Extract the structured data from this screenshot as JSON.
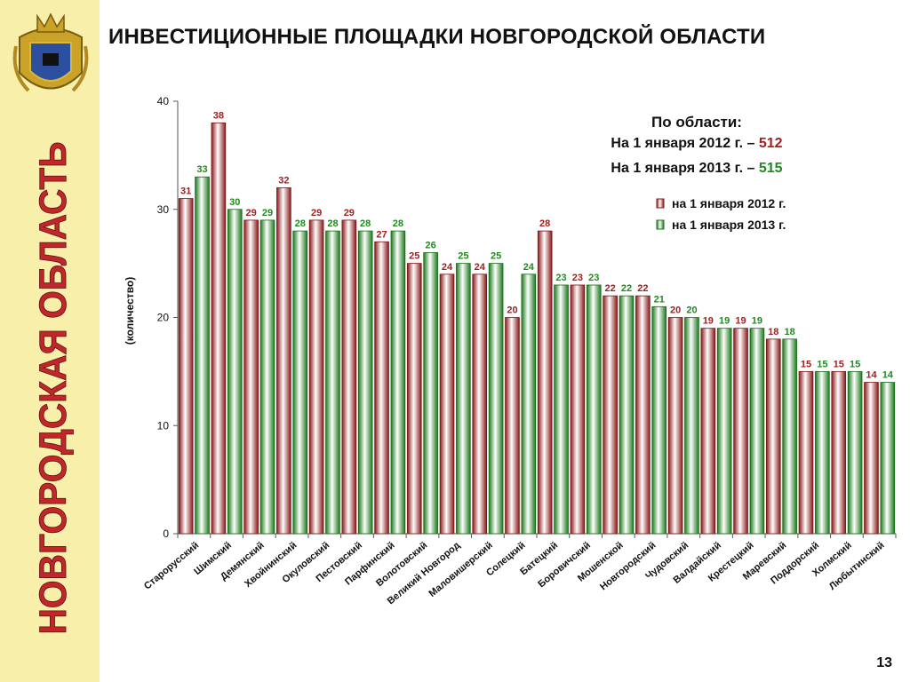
{
  "slide": {
    "title": "ИНВЕСТИЦИОННЫЕ ПЛОЩАДКИ НОВГОРОДСКОЙ ОБЛАСТИ",
    "side_title": "НОВГОРОДСКАЯ ОБЛАСТЬ",
    "page_number": "13"
  },
  "summary": {
    "heading": "По области:",
    "line1_text": "На 1 января 2012 г. –",
    "line1_value": "512",
    "line2_text": "На 1 января 2013 г. –",
    "line2_value": "515"
  },
  "colors": {
    "series_2012": "#a02020",
    "series_2013": "#1e8a1e",
    "sidebar_bg": "#f7efaa",
    "side_title": "#c0262a"
  },
  "chart_data": {
    "type": "bar",
    "ylabel": "(количество)",
    "ylim": [
      0,
      40
    ],
    "yticks": [
      0,
      10,
      20,
      30,
      40
    ],
    "legend_position": "top-right",
    "categories": [
      "Старорусский",
      "Шимский",
      "Демянский",
      "Хвойнинский",
      "Окуловский",
      "Пестовский",
      "Парфинский",
      "Волотовский",
      "Великий Новгород",
      "Маловишерский",
      "Солецкий",
      "Батецкий",
      "Боровичский",
      "Мошенской",
      "Новгородский",
      "Чудовский",
      "Валдайский",
      "Крестецкий",
      "Маревский",
      "Поддорский",
      "Холмский",
      "Любытинский"
    ],
    "series": [
      {
        "name": "на 1 января 2012 г.",
        "values": [
          31,
          38,
          29,
          32,
          29,
          29,
          27,
          25,
          24,
          24,
          20,
          28,
          23,
          22,
          22,
          20,
          19,
          19,
          18,
          15,
          15,
          14
        ]
      },
      {
        "name": "на 1 января 2013 г.",
        "values": [
          33,
          30,
          29,
          28,
          28,
          28,
          28,
          26,
          25,
          25,
          24,
          23,
          23,
          22,
          21,
          20,
          19,
          19,
          18,
          15,
          15,
          14
        ]
      }
    ]
  }
}
